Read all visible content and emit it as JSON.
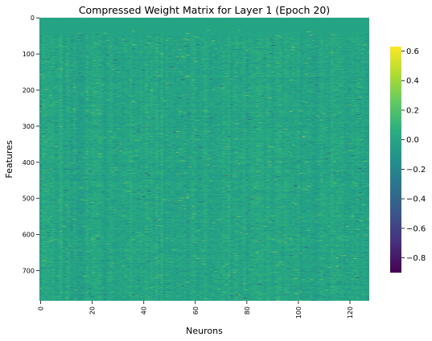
{
  "chart_data": {
    "type": "heatmap",
    "title": "Compressed Weight Matrix for Layer 1 (Epoch 20)",
    "xlabel": "Neurons",
    "ylabel": "Features",
    "x_range": [
      0,
      128
    ],
    "y_range": [
      0,
      784
    ],
    "x_ticks": [
      0,
      20,
      40,
      60,
      80,
      100,
      120
    ],
    "y_ticks": [
      0,
      100,
      200,
      300,
      400,
      500,
      600,
      700
    ],
    "colormap": "viridis",
    "colorbar": {
      "range": [
        -0.9,
        0.63
      ],
      "ticks": [
        0.6,
        0.4,
        0.2,
        0.0,
        -0.2,
        -0.4,
        -0.6,
        -0.8
      ],
      "tick_labels": [
        "0.6",
        "0.4",
        "0.2",
        "0.0",
        "−0.2",
        "−0.4",
        "−0.6",
        "−0.8"
      ]
    },
    "value_summary": {
      "typical_range": [
        -0.2,
        0.3
      ],
      "rows_0_to_35_near": 0.0,
      "min": -0.9,
      "max": 0.63
    },
    "grid": false,
    "legend": "none"
  }
}
